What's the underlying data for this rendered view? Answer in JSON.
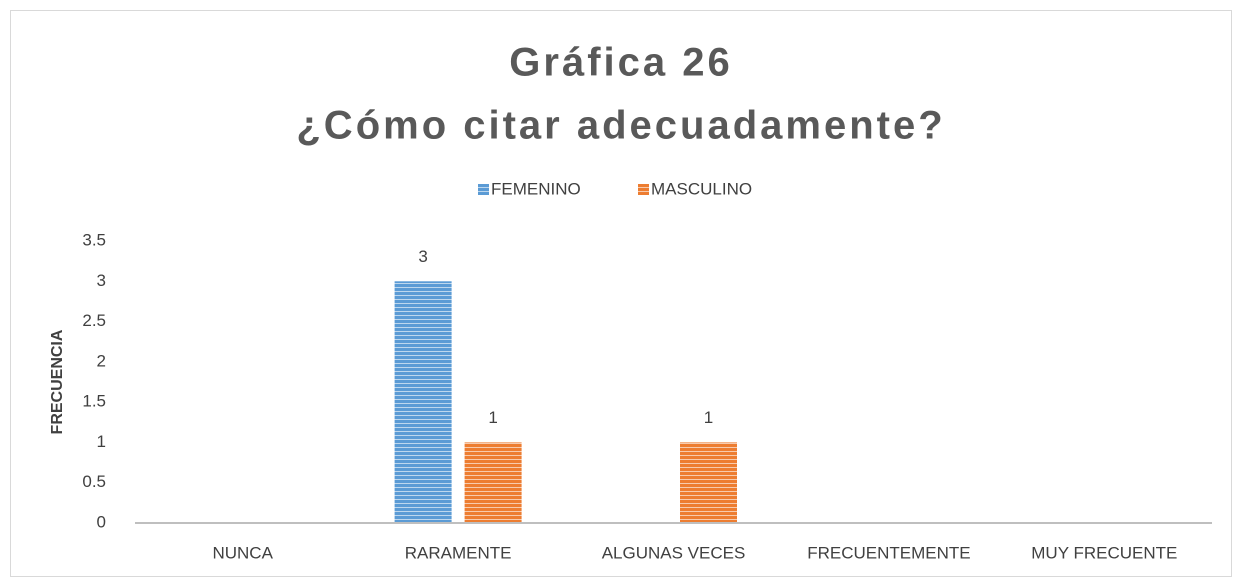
{
  "chart_data": {
    "type": "bar",
    "title": "Gráfica 26",
    "subtitle": "¿Cómo citar adecuadamente?",
    "y_label": "FRECUENCIA",
    "categories": [
      "NUNCA",
      "RARAMENTE",
      "ALGUNAS VECES",
      "FRECUENTEMENTE",
      "MUY FRECUENTE"
    ],
    "series": [
      {
        "name": "FEMENINO",
        "color": "#5b9bd5",
        "values": [
          0,
          3,
          0,
          0,
          0
        ],
        "value_labels": [
          null,
          "3",
          null,
          null,
          null
        ]
      },
      {
        "name": "MASCULINO",
        "color": "#ed7d31",
        "values": [
          0,
          1,
          1,
          0,
          0
        ],
        "value_labels": [
          null,
          "1",
          "1",
          null,
          null
        ]
      }
    ],
    "ylim": [
      0,
      3.5
    ],
    "yticks": [
      0,
      0.5,
      1,
      1.5,
      2,
      2.5,
      3,
      3.5
    ],
    "grid": false,
    "legend": "top"
  }
}
